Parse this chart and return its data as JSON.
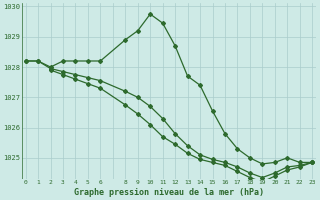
{
  "line1_x": [
    0,
    1,
    2,
    3,
    4,
    5,
    6,
    8,
    9,
    10,
    11,
    12,
    13,
    14,
    15,
    16,
    17,
    18,
    19,
    20,
    21,
    22,
    23
  ],
  "line1_y": [
    1028.2,
    1028.2,
    1028.0,
    1028.2,
    1028.2,
    1028.2,
    1028.2,
    1028.9,
    1029.2,
    1029.75,
    1029.45,
    1028.7,
    1027.7,
    1027.4,
    1026.55,
    1025.8,
    1025.3,
    1025.0,
    1024.8,
    1024.85,
    1025.0,
    1024.85,
    1024.85
  ],
  "line2_x": [
    0,
    1,
    2,
    3,
    4,
    5,
    6,
    8,
    9,
    10,
    11,
    12,
    13,
    14,
    15,
    16,
    17,
    18,
    19,
    20,
    21,
    22,
    23
  ],
  "line2_y": [
    1028.2,
    1028.2,
    1027.95,
    1027.85,
    1027.75,
    1027.65,
    1027.55,
    1027.2,
    1027.0,
    1026.7,
    1026.3,
    1025.8,
    1025.4,
    1025.1,
    1024.95,
    1024.85,
    1024.7,
    1024.5,
    1024.35,
    1024.5,
    1024.7,
    1024.75,
    1024.85
  ],
  "line3_x": [
    2,
    3,
    4,
    5,
    6,
    8,
    9,
    10,
    11,
    12,
    13,
    14,
    15,
    16,
    17,
    18,
    19,
    20,
    21,
    22,
    23
  ],
  "line3_y": [
    1027.9,
    1027.75,
    1027.6,
    1027.45,
    1027.3,
    1026.75,
    1026.45,
    1026.1,
    1025.7,
    1025.45,
    1025.15,
    1024.95,
    1024.85,
    1024.75,
    1024.55,
    1024.35,
    1024.2,
    1024.4,
    1024.6,
    1024.7,
    1024.85
  ],
  "line_color": "#2d6a2d",
  "bg_color": "#ceeae6",
  "grid_color": "#aacccc",
  "xlabel": "Graphe pression niveau de la mer (hPa)",
  "yticks": [
    1025,
    1026,
    1027,
    1028,
    1029,
    1030
  ],
  "xtick_labels": [
    "0",
    "1",
    "2",
    "3",
    "4",
    "5",
    "6",
    "",
    "8",
    "9",
    "10",
    "11",
    "12",
    "13",
    "14",
    "15",
    "16",
    "17",
    "18",
    "19",
    "20",
    "21",
    "22",
    "23"
  ],
  "xtick_positions": [
    0,
    1,
    2,
    3,
    4,
    5,
    6,
    7,
    8,
    9,
    10,
    11,
    12,
    13,
    14,
    15,
    16,
    17,
    18,
    19,
    20,
    21,
    22,
    23
  ],
  "xlim": [
    -0.3,
    23.3
  ],
  "ylim": [
    1024.3,
    1030.1
  ]
}
